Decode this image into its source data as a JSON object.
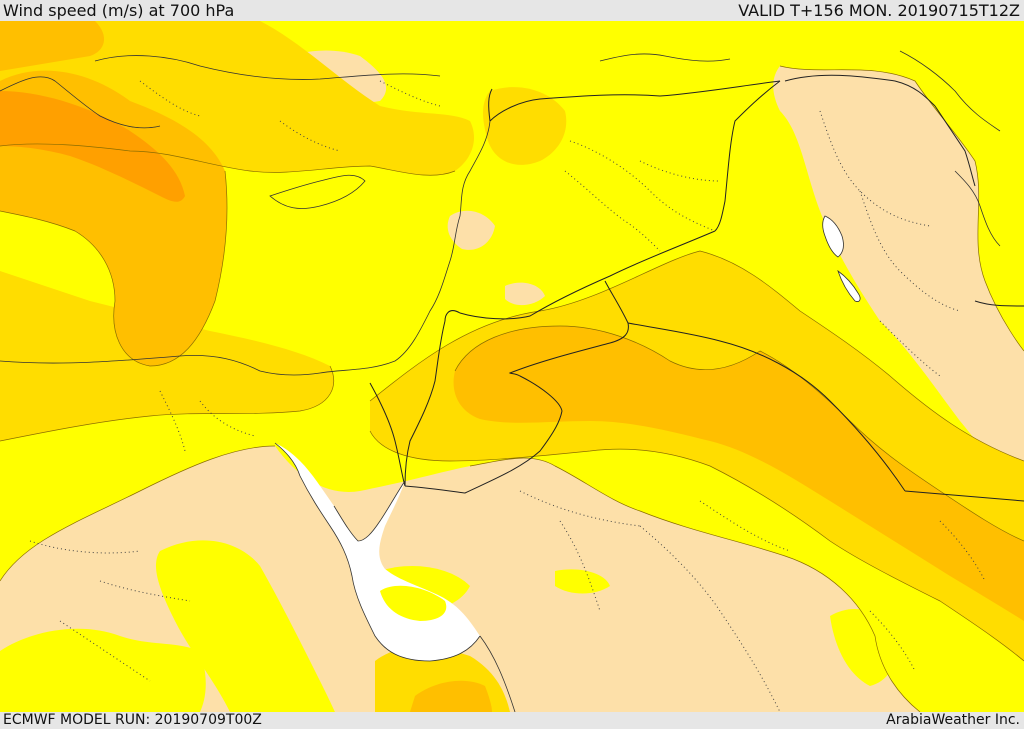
{
  "header": {
    "title": "Wind speed (m/s) at 700 hPa",
    "valid": "VALID T+156 MON. 20190715T12Z"
  },
  "footer": {
    "model_run": "ECMWF MODEL RUN: 20190709T00Z",
    "credit": "ArabiaWeather Inc."
  },
  "colors": {
    "level_0": "#fde0a9",
    "level_1": "#ffff00",
    "level_2": "#ffdd00",
    "level_3": "#ffbf00",
    "level_4": "#ffa000",
    "sea_gap": "#ffffff",
    "coastline": "#333333",
    "border": "#222222",
    "internal_boundary": "#444444"
  }
}
